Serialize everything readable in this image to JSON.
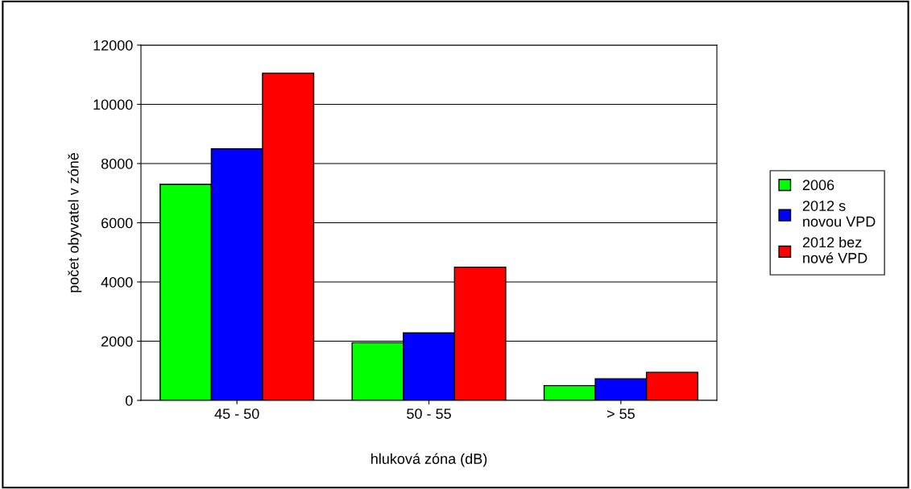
{
  "chart_data": {
    "type": "bar",
    "xlabel": "hluková zóna (dB)",
    "ylabel": "počet obyvatel v zóně",
    "categories": [
      "45 - 50",
      "50 - 55",
      "> 55"
    ],
    "series": [
      {
        "name": "2006",
        "color": "#00ff00",
        "values": [
          7300,
          1950,
          500
        ]
      },
      {
        "name": "2012 s\nnovou VPD",
        "color": "#0000ff",
        "values": [
          8500,
          2280,
          730
        ]
      },
      {
        "name": "2012 bez\nnové VPD",
        "color": "#ff0000",
        "values": [
          11050,
          4500,
          950
        ]
      }
    ],
    "ylim": [
      0,
      12000
    ],
    "yticks": [
      0,
      2000,
      4000,
      6000,
      8000,
      10000,
      12000
    ],
    "grid": "y",
    "legend": "right"
  }
}
